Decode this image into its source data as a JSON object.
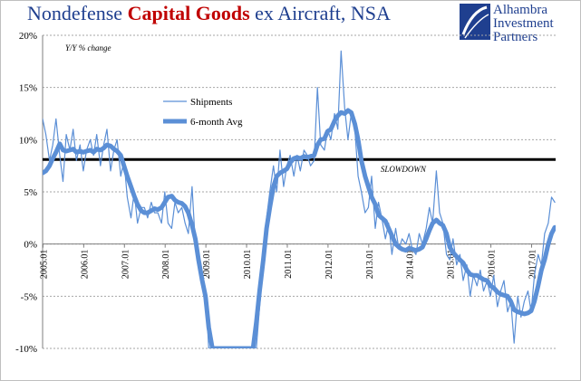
{
  "title": {
    "part1": "Nondefense ",
    "part2": "Capital Goods",
    "part3": " ex Aircraft, NSA"
  },
  "brand": {
    "line1": "Alhambra",
    "line2": "Investment",
    "line3": "Partners"
  },
  "colors": {
    "title": "#1f3f8f",
    "title_highlight": "#c00000",
    "series": "#5b8fd6",
    "threshold": "#000000"
  },
  "chart_data": {
    "type": "line",
    "ylabel": "Y/Y % change",
    "ylim": [
      -10,
      20
    ],
    "yticks": [
      "20%",
      "15%",
      "10%",
      "5%",
      "0%",
      "-5%",
      "-10%"
    ],
    "xticks": [
      "2005.01",
      "2006.01",
      "2007.01",
      "2008.01",
      "2009.01",
      "2010.01",
      "2011.01",
      "2012.01",
      "2013.01",
      "2014.01",
      "2015.01",
      "2016.01",
      "2017.01"
    ],
    "xlim": [
      2005.0,
      2017.6
    ],
    "grid": true,
    "legend_placement": "upper-left",
    "threshold": {
      "value": 8.1,
      "label": "SLOWDOWN"
    },
    "series": [
      {
        "name": "Shipments",
        "style": "thin",
        "points": [
          [
            2005.0,
            12.0
          ],
          [
            2005.08,
            10.5
          ],
          [
            2005.17,
            8.0
          ],
          [
            2005.25,
            9.5
          ],
          [
            2005.33,
            12.0
          ],
          [
            2005.42,
            8.5
          ],
          [
            2005.5,
            6.0
          ],
          [
            2005.58,
            10.5
          ],
          [
            2005.67,
            9.0
          ],
          [
            2005.75,
            11.0
          ],
          [
            2005.83,
            8.0
          ],
          [
            2005.92,
            9.5
          ],
          [
            2006.0,
            7.0
          ],
          [
            2006.08,
            9.0
          ],
          [
            2006.17,
            10.0
          ],
          [
            2006.25,
            8.5
          ],
          [
            2006.33,
            10.5
          ],
          [
            2006.42,
            7.5
          ],
          [
            2006.5,
            9.5
          ],
          [
            2006.58,
            11.0
          ],
          [
            2006.67,
            7.0
          ],
          [
            2006.75,
            9.0
          ],
          [
            2006.83,
            10.0
          ],
          [
            2006.92,
            6.5
          ],
          [
            2007.0,
            8.0
          ],
          [
            2007.08,
            4.5
          ],
          [
            2007.17,
            2.5
          ],
          [
            2007.25,
            5.0
          ],
          [
            2007.33,
            2.0
          ],
          [
            2007.42,
            3.5
          ],
          [
            2007.5,
            3.5
          ],
          [
            2007.58,
            2.5
          ],
          [
            2007.67,
            4.0
          ],
          [
            2007.75,
            3.0
          ],
          [
            2007.83,
            3.0
          ],
          [
            2007.92,
            2.0
          ],
          [
            2008.0,
            5.0
          ],
          [
            2008.08,
            2.0
          ],
          [
            2008.17,
            1.5
          ],
          [
            2008.25,
            4.0
          ],
          [
            2008.33,
            3.0
          ],
          [
            2008.42,
            3.5
          ],
          [
            2008.5,
            2.0
          ],
          [
            2008.58,
            1.0
          ],
          [
            2008.67,
            5.5
          ],
          [
            2008.75,
            0.0
          ],
          [
            2008.83,
            -1.5
          ],
          [
            2008.92,
            -3.0
          ],
          [
            2009.0,
            -4.5
          ],
          [
            2009.08,
            -10.0
          ],
          [
            2009.17,
            -10.0
          ],
          [
            2009.25,
            -10.0
          ],
          [
            2010.25,
            -10.0
          ],
          [
            2010.33,
            -6.0
          ],
          [
            2010.42,
            -2.0
          ],
          [
            2010.5,
            2.5
          ],
          [
            2010.58,
            5.0
          ],
          [
            2010.67,
            7.5
          ],
          [
            2010.75,
            5.0
          ],
          [
            2010.83,
            9.0
          ],
          [
            2010.92,
            5.5
          ],
          [
            2011.0,
            7.5
          ],
          [
            2011.08,
            8.5
          ],
          [
            2011.17,
            6.5
          ],
          [
            2011.25,
            8.5
          ],
          [
            2011.33,
            7.0
          ],
          [
            2011.42,
            9.0
          ],
          [
            2011.5,
            8.5
          ],
          [
            2011.58,
            7.5
          ],
          [
            2011.67,
            8.0
          ],
          [
            2011.75,
            15.0
          ],
          [
            2011.83,
            9.5
          ],
          [
            2011.92,
            9.0
          ],
          [
            2012.0,
            11.0
          ],
          [
            2012.08,
            10.0
          ],
          [
            2012.17,
            12.5
          ],
          [
            2012.25,
            11.0
          ],
          [
            2012.33,
            18.5
          ],
          [
            2012.42,
            13.0
          ],
          [
            2012.5,
            10.0
          ],
          [
            2012.58,
            12.5
          ],
          [
            2012.67,
            11.0
          ],
          [
            2012.75,
            6.5
          ],
          [
            2012.83,
            5.0
          ],
          [
            2012.92,
            3.0
          ],
          [
            2013.0,
            3.5
          ],
          [
            2013.08,
            6.5
          ],
          [
            2013.17,
            1.5
          ],
          [
            2013.25,
            4.0
          ],
          [
            2013.33,
            2.5
          ],
          [
            2013.42,
            0.5
          ],
          [
            2013.5,
            2.0
          ],
          [
            2013.58,
            -1.0
          ],
          [
            2013.67,
            1.5
          ],
          [
            2013.75,
            -0.5
          ],
          [
            2013.83,
            0.5
          ],
          [
            2013.92,
            0.0
          ],
          [
            2014.0,
            1.0
          ],
          [
            2014.08,
            -0.5
          ],
          [
            2014.17,
            -1.0
          ],
          [
            2014.25,
            1.0
          ],
          [
            2014.33,
            0.0
          ],
          [
            2014.42,
            1.5
          ],
          [
            2014.5,
            3.5
          ],
          [
            2014.58,
            2.0
          ],
          [
            2014.67,
            7.0
          ],
          [
            2014.75,
            3.0
          ],
          [
            2014.83,
            2.0
          ],
          [
            2014.92,
            -1.0
          ],
          [
            2015.0,
            -1.5
          ],
          [
            2015.08,
            0.5
          ],
          [
            2015.17,
            -2.0
          ],
          [
            2015.25,
            -1.0
          ],
          [
            2015.33,
            -3.5
          ],
          [
            2015.42,
            -2.0
          ],
          [
            2015.5,
            -5.0
          ],
          [
            2015.58,
            -3.0
          ],
          [
            2015.67,
            -4.0
          ],
          [
            2015.75,
            -2.5
          ],
          [
            2015.83,
            -4.5
          ],
          [
            2015.92,
            -3.5
          ],
          [
            2016.0,
            -5.0
          ],
          [
            2016.08,
            -3.0
          ],
          [
            2016.17,
            -6.0
          ],
          [
            2016.25,
            -4.5
          ],
          [
            2016.33,
            -3.5
          ],
          [
            2016.42,
            -6.5
          ],
          [
            2016.5,
            -5.5
          ],
          [
            2016.58,
            -9.5
          ],
          [
            2016.67,
            -5.0
          ],
          [
            2016.75,
            -7.0
          ],
          [
            2016.83,
            -5.5
          ],
          [
            2016.92,
            -4.5
          ],
          [
            2017.0,
            -6.5
          ],
          [
            2017.08,
            -3.0
          ],
          [
            2017.17,
            -1.0
          ],
          [
            2017.25,
            -2.0
          ],
          [
            2017.33,
            1.0
          ],
          [
            2017.42,
            2.0
          ],
          [
            2017.5,
            4.5
          ],
          [
            2017.58,
            4.0
          ]
        ]
      },
      {
        "name": "6-month Avg",
        "style": "thick",
        "points": [
          [
            2005.0,
            6.8
          ],
          [
            2005.08,
            7.0
          ],
          [
            2005.17,
            7.5
          ],
          [
            2005.25,
            8.2
          ],
          [
            2005.33,
            8.8
          ],
          [
            2005.42,
            9.6
          ],
          [
            2005.5,
            9.0
          ],
          [
            2005.58,
            8.9
          ],
          [
            2005.67,
            9.0
          ],
          [
            2005.75,
            9.1
          ],
          [
            2005.83,
            8.8
          ],
          [
            2005.92,
            8.9
          ],
          [
            2006.0,
            8.8
          ],
          [
            2006.08,
            8.9
          ],
          [
            2006.17,
            9.0
          ],
          [
            2006.25,
            8.8
          ],
          [
            2006.33,
            9.1
          ],
          [
            2006.42,
            9.0
          ],
          [
            2006.5,
            9.2
          ],
          [
            2006.58,
            9.5
          ],
          [
            2006.67,
            9.4
          ],
          [
            2006.75,
            9.1
          ],
          [
            2006.83,
            8.9
          ],
          [
            2006.92,
            8.5
          ],
          [
            2007.0,
            7.5
          ],
          [
            2007.08,
            6.5
          ],
          [
            2007.17,
            5.5
          ],
          [
            2007.25,
            4.6
          ],
          [
            2007.33,
            3.8
          ],
          [
            2007.42,
            3.2
          ],
          [
            2007.5,
            3.0
          ],
          [
            2007.58,
            3.0
          ],
          [
            2007.67,
            3.2
          ],
          [
            2007.75,
            3.4
          ],
          [
            2007.83,
            3.3
          ],
          [
            2007.92,
            3.5
          ],
          [
            2008.0,
            4.0
          ],
          [
            2008.08,
            4.5
          ],
          [
            2008.17,
            4.6
          ],
          [
            2008.25,
            4.2
          ],
          [
            2008.33,
            4.0
          ],
          [
            2008.42,
            3.9
          ],
          [
            2008.5,
            3.6
          ],
          [
            2008.58,
            3.0
          ],
          [
            2008.67,
            1.8
          ],
          [
            2008.75,
            0.5
          ],
          [
            2008.83,
            -1.5
          ],
          [
            2008.92,
            -3.5
          ],
          [
            2009.0,
            -5.0
          ],
          [
            2009.08,
            -8.0
          ],
          [
            2009.17,
            -10.0
          ],
          [
            2010.17,
            -10.0
          ],
          [
            2010.25,
            -7.5
          ],
          [
            2010.33,
            -4.5
          ],
          [
            2010.42,
            -1.5
          ],
          [
            2010.5,
            1.5
          ],
          [
            2010.58,
            3.5
          ],
          [
            2010.67,
            5.5
          ],
          [
            2010.75,
            6.5
          ],
          [
            2010.83,
            6.8
          ],
          [
            2010.92,
            7.0
          ],
          [
            2011.0,
            7.2
          ],
          [
            2011.08,
            7.8
          ],
          [
            2011.17,
            8.2
          ],
          [
            2011.25,
            8.3
          ],
          [
            2011.33,
            8.2
          ],
          [
            2011.42,
            8.4
          ],
          [
            2011.5,
            8.3
          ],
          [
            2011.58,
            8.4
          ],
          [
            2011.67,
            8.5
          ],
          [
            2011.75,
            9.5
          ],
          [
            2011.83,
            10.0
          ],
          [
            2011.92,
            10.1
          ],
          [
            2012.0,
            10.8
          ],
          [
            2012.08,
            11.0
          ],
          [
            2012.17,
            11.8
          ],
          [
            2012.25,
            12.3
          ],
          [
            2012.33,
            12.6
          ],
          [
            2012.42,
            12.5
          ],
          [
            2012.5,
            12.8
          ],
          [
            2012.58,
            12.6
          ],
          [
            2012.67,
            11.5
          ],
          [
            2012.75,
            10.0
          ],
          [
            2012.83,
            8.0
          ],
          [
            2012.92,
            6.5
          ],
          [
            2013.0,
            5.5
          ],
          [
            2013.08,
            4.5
          ],
          [
            2013.17,
            3.8
          ],
          [
            2013.25,
            2.8
          ],
          [
            2013.33,
            2.5
          ],
          [
            2013.42,
            2.2
          ],
          [
            2013.5,
            1.5
          ],
          [
            2013.58,
            0.8
          ],
          [
            2013.67,
            0.0
          ],
          [
            2013.75,
            -0.3
          ],
          [
            2013.83,
            -0.5
          ],
          [
            2013.92,
            -0.6
          ],
          [
            2014.0,
            -0.4
          ],
          [
            2014.08,
            -0.5
          ],
          [
            2014.17,
            -0.6
          ],
          [
            2014.25,
            -0.5
          ],
          [
            2014.33,
            -0.3
          ],
          [
            2014.42,
            0.5
          ],
          [
            2014.5,
            1.3
          ],
          [
            2014.58,
            2.0
          ],
          [
            2014.67,
            2.3
          ],
          [
            2014.75,
            2.0
          ],
          [
            2014.83,
            1.8
          ],
          [
            2014.92,
            1.0
          ],
          [
            2015.0,
            -0.3
          ],
          [
            2015.08,
            -0.8
          ],
          [
            2015.17,
            -1.2
          ],
          [
            2015.25,
            -1.5
          ],
          [
            2015.33,
            -1.8
          ],
          [
            2015.42,
            -2.5
          ],
          [
            2015.5,
            -2.9
          ],
          [
            2015.58,
            -3.0
          ],
          [
            2015.67,
            -3.0
          ],
          [
            2015.75,
            -3.2
          ],
          [
            2015.83,
            -3.4
          ],
          [
            2015.92,
            -3.5
          ],
          [
            2016.0,
            -4.0
          ],
          [
            2016.08,
            -4.2
          ],
          [
            2016.17,
            -4.6
          ],
          [
            2016.25,
            -4.8
          ],
          [
            2016.33,
            -4.9
          ],
          [
            2016.42,
            -5.0
          ],
          [
            2016.5,
            -5.5
          ],
          [
            2016.58,
            -6.3
          ],
          [
            2016.67,
            -6.5
          ],
          [
            2016.75,
            -6.6
          ],
          [
            2016.83,
            -6.7
          ],
          [
            2016.92,
            -6.6
          ],
          [
            2017.0,
            -6.4
          ],
          [
            2017.08,
            -5.5
          ],
          [
            2017.17,
            -4.0
          ],
          [
            2017.25,
            -2.5
          ],
          [
            2017.33,
            -1.5
          ],
          [
            2017.42,
            0.0
          ],
          [
            2017.5,
            1.0
          ],
          [
            2017.58,
            1.6
          ]
        ]
      }
    ]
  }
}
